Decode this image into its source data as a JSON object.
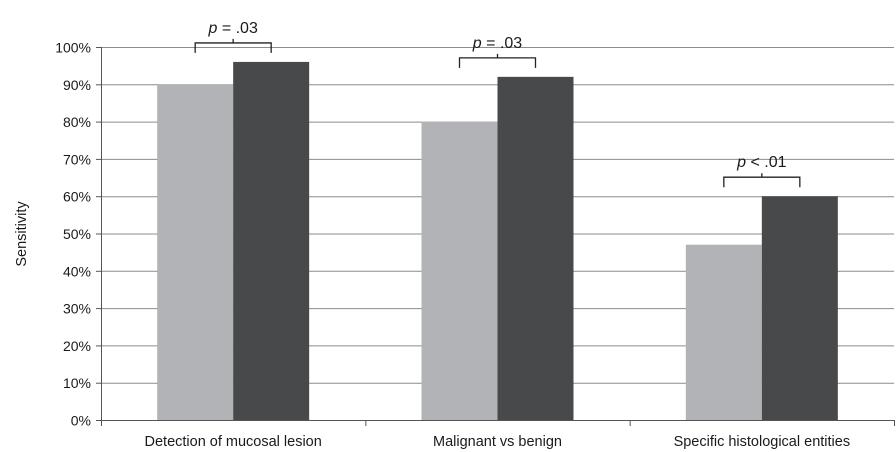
{
  "chart_data": {
    "type": "bar",
    "categories": [
      "Detection of mucosal lesion",
      "Malignant vs benign",
      "Specific histological entities"
    ],
    "series": [
      {
        "color": "#b2b3b7",
        "values": [
          90,
          80,
          47
        ]
      },
      {
        "color": "#48494b",
        "values": [
          96,
          92,
          60
        ]
      }
    ],
    "ylabel": "Sensitivity",
    "ylim": [
      0,
      100
    ],
    "yticks": [
      "0%",
      "10%",
      "20%",
      "30%",
      "40%",
      "50%",
      "60%",
      "70%",
      "80%",
      "90%",
      "100%"
    ],
    "grid": true,
    "annotations": [
      {
        "category": 0,
        "symbol": "p",
        "text": " = .03"
      },
      {
        "category": 1,
        "symbol": "p",
        "text": " = .03"
      },
      {
        "category": 2,
        "symbol": "p",
        "text": " < .01"
      }
    ]
  }
}
